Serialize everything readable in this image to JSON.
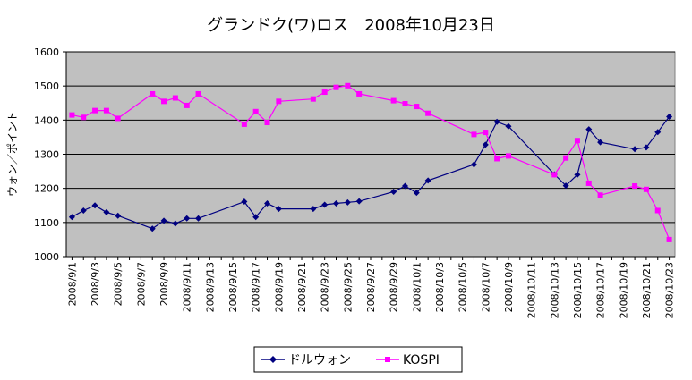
{
  "chart_data": {
    "type": "line",
    "title": "グランドク(ワ)ロス　2008年10月23日",
    "xlabel": "",
    "ylabel": "ウォン／ポイント",
    "ylim": [
      1000,
      1600
    ],
    "yticks": [
      1000,
      1100,
      1200,
      1300,
      1400,
      1500,
      1600
    ],
    "xrange": [
      "2008/9/1",
      "2008/10/23"
    ],
    "xticks": [
      "2008/9/1",
      "2008/9/3",
      "2008/9/5",
      "2008/9/7",
      "2008/9/9",
      "2008/9/11",
      "2008/9/13",
      "2008/9/15",
      "2008/9/17",
      "2008/9/19",
      "2008/9/21",
      "2008/9/23",
      "2008/9/25",
      "2008/9/27",
      "2008/9/29",
      "2008/10/1",
      "2008/10/3",
      "2008/10/5",
      "2008/10/7",
      "2008/10/9",
      "2008/10/11",
      "2008/10/13",
      "2008/10/15",
      "2008/10/17",
      "2008/10/19",
      "2008/10/21",
      "2008/10/23"
    ],
    "grid": true,
    "legend_position": "bottom",
    "background_color": "#c0c0c0",
    "series": [
      {
        "name": "ドルウォン",
        "color": "#000080",
        "marker": "diamond",
        "points": [
          {
            "x": "2008/9/1",
            "y": 1116
          },
          {
            "x": "2008/9/2",
            "y": 1135
          },
          {
            "x": "2008/9/3",
            "y": 1150
          },
          {
            "x": "2008/9/4",
            "y": 1130
          },
          {
            "x": "2008/9/5",
            "y": 1120
          },
          {
            "x": "2008/9/8",
            "y": 1082
          },
          {
            "x": "2008/9/9",
            "y": 1105
          },
          {
            "x": "2008/9/10",
            "y": 1097
          },
          {
            "x": "2008/9/11",
            "y": 1112
          },
          {
            "x": "2008/9/12",
            "y": 1112
          },
          {
            "x": "2008/9/16",
            "y": 1161
          },
          {
            "x": "2008/9/17",
            "y": 1116
          },
          {
            "x": "2008/9/18",
            "y": 1156
          },
          {
            "x": "2008/9/19",
            "y": 1140
          },
          {
            "x": "2008/9/22",
            "y": 1140
          },
          {
            "x": "2008/9/23",
            "y": 1152
          },
          {
            "x": "2008/9/24",
            "y": 1156
          },
          {
            "x": "2008/9/25",
            "y": 1159
          },
          {
            "x": "2008/9/26",
            "y": 1162
          },
          {
            "x": "2008/9/29",
            "y": 1190
          },
          {
            "x": "2008/9/30",
            "y": 1207
          },
          {
            "x": "2008/10/1",
            "y": 1187
          },
          {
            "x": "2008/10/2",
            "y": 1223
          },
          {
            "x": "2008/10/6",
            "y": 1270
          },
          {
            "x": "2008/10/7",
            "y": 1328
          },
          {
            "x": "2008/10/8",
            "y": 1395
          },
          {
            "x": "2008/10/9",
            "y": 1382
          },
          {
            "x": "2008/10/13",
            "y": 1241
          },
          {
            "x": "2008/10/14",
            "y": 1208
          },
          {
            "x": "2008/10/15",
            "y": 1240
          },
          {
            "x": "2008/10/16",
            "y": 1373
          },
          {
            "x": "2008/10/17",
            "y": 1335
          },
          {
            "x": "2008/10/20",
            "y": 1315
          },
          {
            "x": "2008/10/21",
            "y": 1320
          },
          {
            "x": "2008/10/22",
            "y": 1365
          },
          {
            "x": "2008/10/23",
            "y": 1410
          }
        ]
      },
      {
        "name": "KOSPI",
        "color": "#ff00ff",
        "marker": "square",
        "points": [
          {
            "x": "2008/9/1",
            "y": 1415
          },
          {
            "x": "2008/9/2",
            "y": 1408
          },
          {
            "x": "2008/9/3",
            "y": 1428
          },
          {
            "x": "2008/9/4",
            "y": 1428
          },
          {
            "x": "2008/9/5",
            "y": 1405
          },
          {
            "x": "2008/9/8",
            "y": 1477
          },
          {
            "x": "2008/9/9",
            "y": 1455
          },
          {
            "x": "2008/9/10",
            "y": 1465
          },
          {
            "x": "2008/9/11",
            "y": 1443
          },
          {
            "x": "2008/9/12",
            "y": 1477
          },
          {
            "x": "2008/9/16",
            "y": 1388
          },
          {
            "x": "2008/9/17",
            "y": 1425
          },
          {
            "x": "2008/9/18",
            "y": 1393
          },
          {
            "x": "2008/9/19",
            "y": 1455
          },
          {
            "x": "2008/9/22",
            "y": 1462
          },
          {
            "x": "2008/9/23",
            "y": 1482
          },
          {
            "x": "2008/9/24",
            "y": 1496
          },
          {
            "x": "2008/9/25",
            "y": 1501
          },
          {
            "x": "2008/9/26",
            "y": 1477
          },
          {
            "x": "2008/9/29",
            "y": 1457
          },
          {
            "x": "2008/9/30",
            "y": 1448
          },
          {
            "x": "2008/10/1",
            "y": 1440
          },
          {
            "x": "2008/10/2",
            "y": 1420
          },
          {
            "x": "2008/10/6",
            "y": 1358
          },
          {
            "x": "2008/10/7",
            "y": 1364
          },
          {
            "x": "2008/10/8",
            "y": 1287
          },
          {
            "x": "2008/10/9",
            "y": 1295
          },
          {
            "x": "2008/10/13",
            "y": 1240
          },
          {
            "x": "2008/10/14",
            "y": 1289
          },
          {
            "x": "2008/10/15",
            "y": 1340
          },
          {
            "x": "2008/10/16",
            "y": 1215
          },
          {
            "x": "2008/10/17",
            "y": 1180
          },
          {
            "x": "2008/10/20",
            "y": 1207
          },
          {
            "x": "2008/10/21",
            "y": 1197
          },
          {
            "x": "2008/10/22",
            "y": 1135
          },
          {
            "x": "2008/10/23",
            "y": 1050
          }
        ]
      }
    ]
  }
}
